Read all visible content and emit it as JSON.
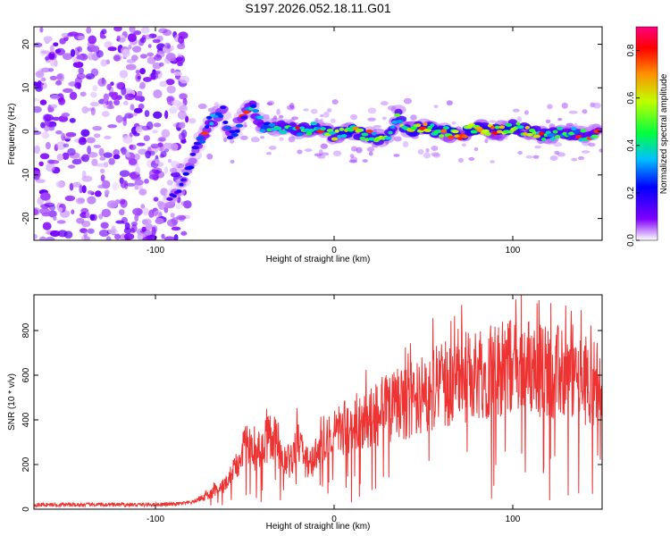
{
  "chart_data": [
    {
      "type": "heatmap",
      "title": "S197.2026.052.18.11.G01",
      "xlabel": "Height of straight line (km)",
      "ylabel": "Frequency (Hz)",
      "xlim": [
        -168,
        150
      ],
      "ylim": [
        -25,
        24
      ],
      "xticks": [
        -100,
        0,
        100
      ],
      "yticks": [
        -20,
        -10,
        0,
        10,
        20
      ],
      "colorbar": {
        "label": "Normalized spectral amplitude",
        "range": [
          0.0,
          0.9
        ],
        "ticks": [
          0.0,
          0.2,
          0.4,
          0.6,
          0.8
        ]
      },
      "ridge": {
        "description_values": "frequency of the dominant spectral ridge vs height",
        "x": [
          -92,
          -85,
          -78,
          -70,
          -62,
          -58,
          -52,
          -46,
          -40,
          -30,
          -20,
          -10,
          0,
          10,
          20,
          30,
          36,
          40,
          50,
          60,
          70,
          80,
          90,
          100,
          110,
          120,
          130,
          140,
          148
        ],
        "y": [
          -16,
          -12,
          -5,
          2,
          5,
          -2,
          3,
          6,
          1,
          1,
          0,
          1,
          -1,
          0,
          -1,
          -2,
          4,
          0,
          1,
          0,
          -1,
          1,
          0,
          1,
          0,
          -1,
          0,
          -1,
          0
        ],
        "amplitude": [
          0.15,
          0.2,
          0.25,
          0.35,
          0.3,
          0.25,
          0.3,
          0.4,
          0.4,
          0.45,
          0.5,
          0.55,
          0.6,
          0.7,
          0.6,
          0.55,
          0.5,
          0.6,
          0.65,
          0.7,
          0.75,
          0.7,
          0.7,
          0.65,
          0.6,
          0.55,
          0.5,
          0.5,
          0.45
        ]
      }
    },
    {
      "type": "line",
      "xlabel": "Height of straight line (km)",
      "ylabel": "SNR (10 * v/v)",
      "xlim": [
        -168,
        150
      ],
      "ylim": [
        0,
        960
      ],
      "xticks": [
        -100,
        0,
        100
      ],
      "yticks": [
        0,
        200,
        400,
        600,
        800
      ],
      "color": "#ee3333",
      "series": [
        {
          "name": "SNR",
          "x": [
            -168,
            -150,
            -130,
            -110,
            -90,
            -80,
            -70,
            -60,
            -55,
            -50,
            -45,
            -40,
            -35,
            -30,
            -25,
            -20,
            -15,
            -10,
            -5,
            0,
            5,
            10,
            20,
            30,
            40,
            50,
            60,
            70,
            80,
            90,
            100,
            110,
            120,
            130,
            140,
            150
          ],
          "values": [
            20,
            20,
            20,
            20,
            22,
            30,
            60,
            120,
            200,
            300,
            250,
            280,
            340,
            260,
            210,
            300,
            180,
            230,
            300,
            340,
            360,
            380,
            400,
            450,
            480,
            520,
            560,
            580,
            610,
            620,
            640,
            640,
            620,
            600,
            580,
            560
          ]
        }
      ]
    }
  ]
}
